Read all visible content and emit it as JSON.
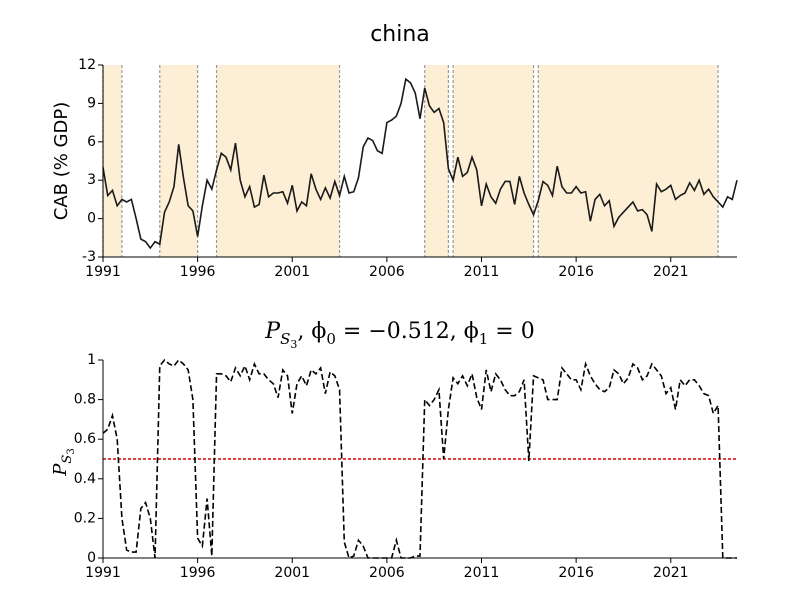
{
  "chart_data": [
    {
      "type": "line",
      "title": "china",
      "ylabel": "CAB (% GDP)",
      "xlim": [
        1991,
        2024.5
      ],
      "xticks": [
        1991,
        1996,
        2001,
        2006,
        2011,
        2016,
        2021
      ],
      "ylim": [
        -3,
        12
      ],
      "yticks": [
        -3,
        0,
        3,
        6,
        9,
        12
      ],
      "regions": [
        [
          1991,
          1992
        ],
        [
          1994,
          1996
        ],
        [
          1997,
          2003.5
        ],
        [
          2008,
          2009.25
        ],
        [
          2009.5,
          2013.75
        ],
        [
          2014,
          2023.5
        ]
      ],
      "region_color": "#fdefd6",
      "x": [
        1991,
        1991.25,
        1991.5,
        1991.75,
        1992,
        1992.25,
        1992.5,
        1992.75,
        1993,
        1993.25,
        1993.5,
        1993.75,
        1994,
        1994.25,
        1994.5,
        1994.75,
        1995,
        1995.25,
        1995.5,
        1995.75,
        1996,
        1996.25,
        1996.5,
        1996.75,
        1997,
        1997.25,
        1997.5,
        1997.75,
        1998,
        1998.25,
        1998.5,
        1998.75,
        1999,
        1999.25,
        1999.5,
        1999.75,
        2000,
        2000.25,
        2000.5,
        2000.75,
        2001,
        2001.25,
        2001.5,
        2001.75,
        2002,
        2002.25,
        2002.5,
        2002.75,
        2003,
        2003.25,
        2003.5,
        2003.75,
        2004,
        2004.25,
        2004.5,
        2004.75,
        2005,
        2005.25,
        2005.5,
        2005.75,
        2006,
        2006.25,
        2006.5,
        2006.75,
        2007,
        2007.25,
        2007.5,
        2007.75,
        2008,
        2008.25,
        2008.5,
        2008.75,
        2009,
        2009.25,
        2009.5,
        2009.75,
        2010,
        2010.25,
        2010.5,
        2010.75,
        2011,
        2011.25,
        2011.5,
        2011.75,
        2012,
        2012.25,
        2012.5,
        2012.75,
        2013,
        2013.25,
        2013.5,
        2013.75,
        2014,
        2014.25,
        2014.5,
        2014.75,
        2015,
        2015.25,
        2015.5,
        2015.75,
        2016,
        2016.25,
        2016.5,
        2016.75,
        2017,
        2017.25,
        2017.5,
        2017.75,
        2018,
        2018.25,
        2018.5,
        2018.75,
        2019,
        2019.25,
        2019.5,
        2019.75,
        2020,
        2020.25,
        2020.5,
        2020.75,
        2021,
        2021.25,
        2021.5,
        2021.75,
        2022,
        2022.25,
        2022.5,
        2022.75,
        2023,
        2023.25,
        2023.5,
        2023.75,
        2024,
        2024.25,
        2024.5
      ],
      "series": [
        {
          "color": "#1a1a1a",
          "linestyle": "solid",
          "values": [
            4.0,
            1.8,
            2.2,
            1.0,
            1.5,
            1.3,
            1.5,
            0.0,
            -1.6,
            -1.8,
            -2.3,
            -1.8,
            -2.0,
            0.5,
            1.3,
            2.5,
            5.8,
            3.2,
            1.0,
            0.6,
            -1.4,
            1.0,
            3.0,
            2.3,
            3.8,
            5.1,
            4.8,
            3.8,
            5.9,
            3.0,
            1.7,
            2.5,
            0.9,
            1.1,
            3.4,
            1.7,
            2.0,
            2.0,
            2.1,
            1.2,
            2.6,
            0.6,
            1.3,
            1.0,
            3.5,
            2.3,
            1.5,
            2.4,
            1.6,
            2.9,
            1.8,
            3.3,
            2.0,
            2.1,
            3.2,
            5.6,
            6.3,
            6.1,
            5.3,
            5.1,
            7.5,
            7.7,
            8.0,
            9.0,
            10.9,
            10.6,
            9.8,
            7.8,
            10.2,
            8.8,
            8.3,
            8.6,
            7.5,
            3.9,
            3.0,
            4.8,
            3.3,
            3.6,
            4.8,
            3.8,
            1.0,
            2.7,
            1.7,
            1.2,
            2.3,
            2.9,
            2.9,
            1.1,
            3.3,
            2.0,
            1.1,
            0.3,
            1.4,
            2.9,
            2.6,
            1.8,
            4.1,
            2.5,
            2.0,
            2.0,
            2.5,
            2.0,
            2.1,
            -0.2,
            1.5,
            1.9,
            1.0,
            1.4,
            -0.6,
            0.1,
            0.5,
            0.9,
            1.3,
            0.6,
            0.7,
            0.3,
            -1.0,
            2.7,
            2.1,
            2.3,
            2.6,
            1.5,
            1.8,
            2.0,
            2.8,
            2.2,
            3.0,
            1.9,
            2.3,
            1.7,
            1.3,
            0.9,
            1.7,
            1.5,
            3.0
          ]
        }
      ]
    },
    {
      "type": "line",
      "title_parts": [
        "P",
        "S",
        "3",
        ", ϕ",
        "0",
        " = −0.512, ϕ",
        "1",
        " = 0"
      ],
      "ylabel_parts": [
        "P",
        "S",
        "3"
      ],
      "xlim": [
        1991,
        2024.5
      ],
      "xticks": [
        1991,
        1996,
        2001,
        2006,
        2011,
        2016,
        2021
      ],
      "ylim": [
        0,
        1
      ],
      "yticks": [
        0,
        0.2,
        0.4,
        0.6,
        0.8,
        1
      ],
      "threshold": 0.5,
      "threshold_color": "#dd0000",
      "x": [
        1991,
        1991.25,
        1991.5,
        1991.75,
        1992,
        1992.25,
        1992.5,
        1992.75,
        1993,
        1993.25,
        1993.5,
        1993.75,
        1994,
        1994.25,
        1994.5,
        1994.75,
        1995,
        1995.25,
        1995.5,
        1995.75,
        1996,
        1996.25,
        1996.5,
        1996.75,
        1997,
        1997.25,
        1997.5,
        1997.75,
        1998,
        1998.25,
        1998.5,
        1998.75,
        1999,
        1999.25,
        1999.5,
        1999.75,
        2000,
        2000.25,
        2000.5,
        2000.75,
        2001,
        2001.25,
        2001.5,
        2001.75,
        2002,
        2002.25,
        2002.5,
        2002.75,
        2003,
        2003.25,
        2003.5,
        2003.75,
        2004,
        2004.25,
        2004.5,
        2004.75,
        2005,
        2005.25,
        2005.5,
        2005.75,
        2006,
        2006.25,
        2006.5,
        2006.75,
        2007,
        2007.25,
        2007.5,
        2007.75,
        2008,
        2008.25,
        2008.5,
        2008.75,
        2009,
        2009.25,
        2009.5,
        2009.75,
        2010,
        2010.25,
        2010.5,
        2010.75,
        2011,
        2011.25,
        2011.5,
        2011.75,
        2012,
        2012.25,
        2012.5,
        2012.75,
        2013,
        2013.25,
        2013.5,
        2013.75,
        2014,
        2014.25,
        2014.5,
        2014.75,
        2015,
        2015.25,
        2015.5,
        2015.75,
        2016,
        2016.25,
        2016.5,
        2016.75,
        2017,
        2017.25,
        2017.5,
        2017.75,
        2018,
        2018.25,
        2018.5,
        2018.75,
        2019,
        2019.25,
        2019.5,
        2019.75,
        2020,
        2020.25,
        2020.5,
        2020.75,
        2021,
        2021.25,
        2021.5,
        2021.75,
        2022,
        2022.25,
        2022.5,
        2022.75,
        2023,
        2023.25,
        2023.5,
        2023.75,
        2024,
        2024.25,
        2024.5
      ],
      "series": [
        {
          "color": "#000000",
          "linestyle": "dashed",
          "values": [
            0.63,
            0.65,
            0.72,
            0.6,
            0.2,
            0.04,
            0.03,
            0.03,
            0.25,
            0.28,
            0.2,
            0.0,
            0.97,
            1.0,
            0.98,
            0.97,
            1.0,
            0.98,
            0.95,
            0.8,
            0.1,
            0.06,
            0.3,
            0.01,
            0.93,
            0.93,
            0.92,
            0.89,
            0.96,
            0.92,
            0.97,
            0.9,
            0.98,
            0.93,
            0.93,
            0.9,
            0.88,
            0.81,
            0.95,
            0.92,
            0.73,
            0.88,
            0.92,
            0.87,
            0.95,
            0.93,
            0.96,
            0.83,
            0.94,
            0.92,
            0.85,
            0.08,
            0.0,
            0.01,
            0.09,
            0.06,
            0.0,
            0.0,
            0.0,
            0.0,
            0.0,
            0.0,
            0.09,
            0.0,
            0.0,
            0.0,
            0.01,
            0.01,
            0.8,
            0.77,
            0.8,
            0.85,
            0.5,
            0.75,
            0.91,
            0.88,
            0.92,
            0.87,
            0.93,
            0.81,
            0.75,
            0.95,
            0.84,
            0.93,
            0.9,
            0.85,
            0.82,
            0.82,
            0.84,
            0.9,
            0.49,
            0.92,
            0.91,
            0.9,
            0.8,
            0.8,
            0.8,
            0.96,
            0.93,
            0.9,
            0.9,
            0.85,
            0.98,
            0.92,
            0.88,
            0.85,
            0.84,
            0.86,
            0.95,
            0.93,
            0.88,
            0.91,
            0.98,
            0.96,
            0.9,
            0.92,
            0.98,
            0.95,
            0.92,
            0.83,
            0.86,
            0.75,
            0.9,
            0.87,
            0.9,
            0.9,
            0.87,
            0.83,
            0.82,
            0.73,
            0.77,
            0.0,
            0.0,
            0.0,
            0.0
          ]
        }
      ]
    }
  ]
}
